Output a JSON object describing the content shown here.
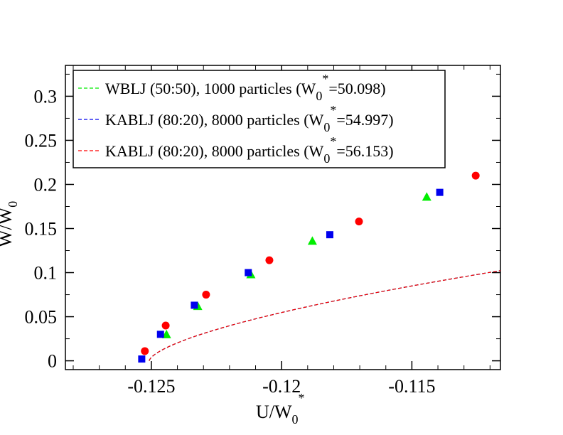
{
  "chart_data": {
    "type": "scatter",
    "title": "",
    "xlabel": {
      "main": "U/W",
      "sub": "0",
      "sup": "*"
    },
    "ylabel": {
      "main": "W/W",
      "sub": "0"
    },
    "xlim": [
      -0.1283,
      -0.1116
    ],
    "ylim": [
      -0.01,
      0.335
    ],
    "x_ticks": [
      {
        "value": -0.125,
        "label": "-0.125"
      },
      {
        "value": -0.12,
        "label": "-0.12"
      },
      {
        "value": -0.115,
        "label": "-0.115"
      }
    ],
    "y_ticks": [
      {
        "value": 0,
        "label": "0"
      },
      {
        "value": 0.05,
        "label": "0.05"
      },
      {
        "value": 0.1,
        "label": "0.1"
      },
      {
        "value": 0.15,
        "label": "0.15"
      },
      {
        "value": 0.2,
        "label": "0.2"
      },
      {
        "value": 0.25,
        "label": "0.25"
      },
      {
        "value": 0.3,
        "label": "0.3"
      }
    ],
    "x_minor_step": 0.001,
    "y_minor_step": 0.025,
    "grid": false,
    "legend_position": "top-left",
    "curve": {
      "x0": -0.12508,
      "coef": 0.7025,
      "exponent": 0.64,
      "x_end": -0.1116
    },
    "series": [
      {
        "name": "WBLJ",
        "legend_parts": [
          "WBLJ   (50:50), 1000 particles (W",
          "0",
          "*",
          "=50.098)"
        ],
        "color": "#00ee00",
        "marker": "triangle",
        "curve_offset": 0.0,
        "points": [
          [
            -0.12442,
            0.03
          ],
          [
            -0.12322,
            0.062
          ],
          [
            -0.12118,
            0.098
          ],
          [
            -0.11882,
            0.136
          ],
          [
            -0.11443,
            0.186
          ]
        ]
      },
      {
        "name": "KABLJ 54.997",
        "legend_parts": [
          "KABLJ (80:20), 8000 particles (W",
          "0",
          "*",
          "=54.997)"
        ],
        "color": "#0000ee",
        "marker": "square",
        "curve_offset": 0.0015,
        "points": [
          [
            -0.12537,
            0.002
          ],
          [
            -0.12465,
            0.03
          ],
          [
            -0.12335,
            0.063
          ],
          [
            -0.12128,
            0.1
          ],
          [
            -0.11815,
            0.143
          ],
          [
            -0.11393,
            0.191
          ]
        ]
      },
      {
        "name": "KABLJ 56.153",
        "legend_parts": [
          "KABLJ (80:20), 8000 particles (W",
          "0",
          "*",
          "=56.153)"
        ],
        "color": "#ff0000",
        "marker": "circle",
        "curve_offset": -0.0015,
        "points": [
          [
            -0.12525,
            0.011
          ],
          [
            -0.12445,
            0.04
          ],
          [
            -0.1229,
            0.075
          ],
          [
            -0.12047,
            0.114
          ],
          [
            -0.11703,
            0.158
          ],
          [
            -0.11255,
            0.21
          ]
        ]
      }
    ]
  }
}
